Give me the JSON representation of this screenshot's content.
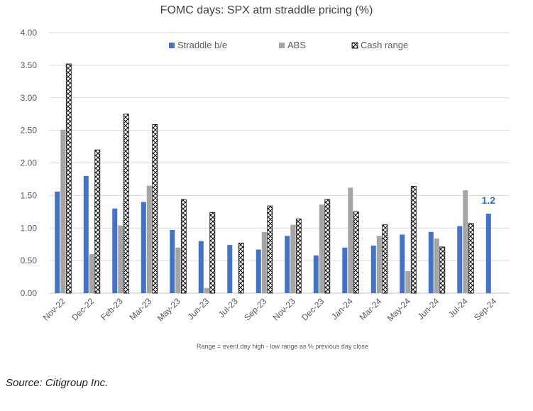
{
  "chart_data": {
    "type": "bar",
    "title": "FOMC days: SPX atm straddle pricing (%)",
    "note": "Range = event day high - low range as % previous day close",
    "ylim": [
      0,
      4
    ],
    "yticks": [
      "0.00",
      "0.50",
      "1.00",
      "1.50",
      "2.00",
      "2.50",
      "3.00",
      "3.50",
      "4.00"
    ],
    "grid": true,
    "legend_position": "top",
    "categories": [
      "Nov-22",
      "Dec-22",
      "Feb-23",
      "Mar-23",
      "May-23",
      "Jun-23",
      "Jul-23",
      "Sep-23",
      "Nov-23",
      "Dec-23",
      "Jan-24",
      "Mar-24",
      "May-24",
      "Jun-24",
      "Jul-24",
      "Sep-24"
    ],
    "series": [
      {
        "name": "Straddle b/e",
        "color": "#4472C4",
        "pattern": "solid",
        "values": [
          1.56,
          1.8,
          1.3,
          1.4,
          0.97,
          0.8,
          0.74,
          0.67,
          0.88,
          0.58,
          0.7,
          0.73,
          0.9,
          0.94,
          1.03,
          1.22
        ]
      },
      {
        "name": "ABS",
        "color": "#A5A5A5",
        "pattern": "solid",
        "values": [
          2.51,
          0.6,
          1.04,
          1.65,
          0.7,
          0.08,
          null,
          0.94,
          1.05,
          1.36,
          1.62,
          0.88,
          0.34,
          0.84,
          1.58,
          null
        ]
      },
      {
        "name": "Cash range",
        "color": "#000000",
        "pattern": "crosshatch",
        "values": [
          3.52,
          2.2,
          2.75,
          2.59,
          1.44,
          1.24,
          0.77,
          1.34,
          1.14,
          1.44,
          1.25,
          1.05,
          1.64,
          0.71,
          1.07,
          null
        ]
      }
    ],
    "annotations": [
      {
        "category": "Sep-24",
        "series": "Straddle b/e",
        "text": "1.2",
        "color": "#2E75B6"
      }
    ]
  },
  "source": "Source: Citigroup Inc."
}
